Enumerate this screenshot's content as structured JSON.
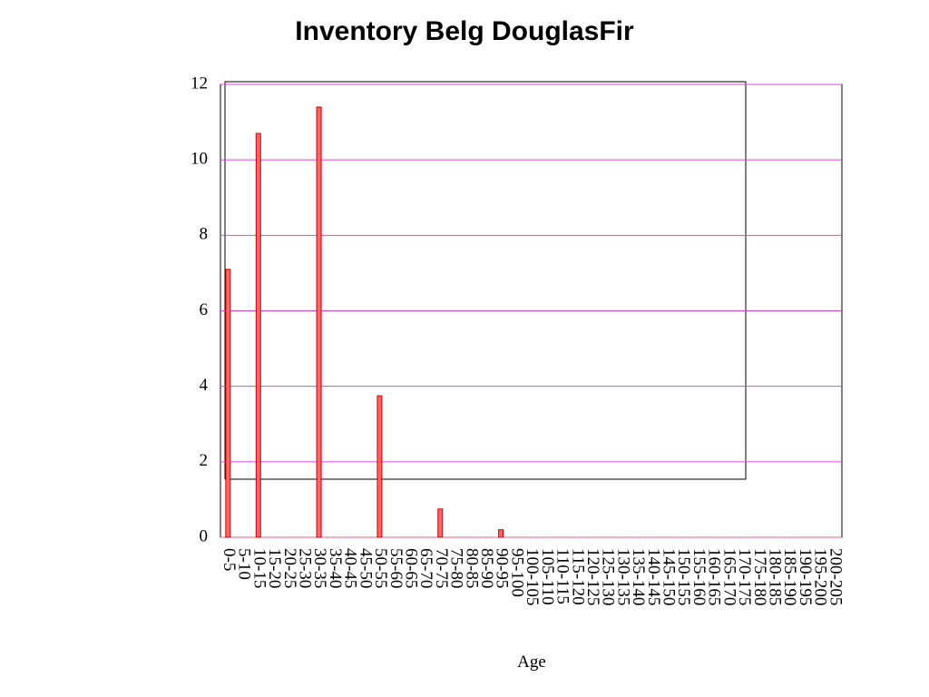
{
  "chart_data": {
    "type": "bar",
    "title": "Inventory Belg DouglasFir",
    "x_label": "Age",
    "categories": [
      "0-5",
      "5-10",
      "10-15",
      "15-20",
      "20-25",
      "25-30",
      "30-35",
      "35-40",
      "40-45",
      "45-50",
      "50-55",
      "55-60",
      "60-65",
      "65-70",
      "70-75",
      "75-80",
      "80-85",
      "85-90",
      "90-95",
      "95-100",
      "100-105",
      "105-110",
      "110-115",
      "115-120",
      "120-125",
      "125-130",
      "130-135",
      "135-140",
      "140-145",
      "145-150",
      "150-155",
      "155-160",
      "160-165",
      "165-170",
      "170-175",
      "175-180",
      "180-185",
      "185-190",
      "190-195",
      "195-200",
      "200-205"
    ],
    "values": [
      7.1,
      0,
      10.7,
      0,
      0,
      0,
      11.4,
      0,
      0,
      0,
      3.75,
      0,
      0,
      0,
      0.75,
      0,
      0,
      0,
      0.2,
      0,
      0,
      0,
      0,
      0,
      0,
      0,
      0,
      0,
      0,
      0,
      0,
      0,
      0,
      0,
      0,
      0,
      0,
      0,
      0,
      0,
      0
    ],
    "color": "#ff6666",
    "ylim": [
      0,
      12
    ],
    "yticks": [
      0,
      2,
      4,
      6,
      8,
      10,
      12
    ],
    "grid": true,
    "grid_color": "#dd44dd"
  }
}
